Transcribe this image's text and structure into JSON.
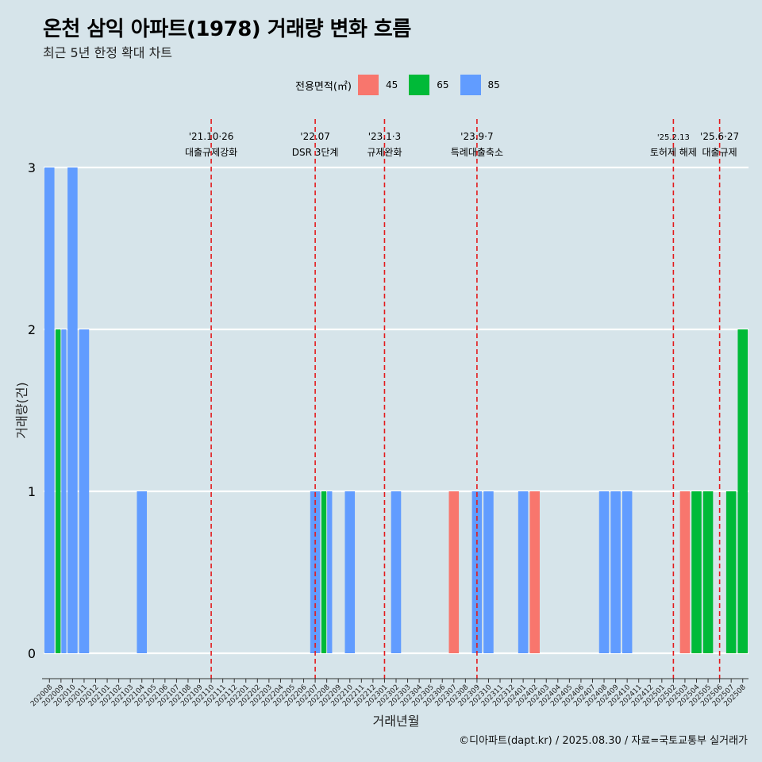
{
  "title": "온천 삼익 아파트(1978) 거래량 변화 흐름",
  "subtitle": "최근 5년 한정 확대 차트",
  "caption": "©디아파트(dapt.kr) / 2025.08.30 / 자료=국토교통부 실거래가",
  "legend": {
    "title": "전용면적(㎡)",
    "items": [
      {
        "label": "45",
        "color": "#f8766d"
      },
      {
        "label": "65",
        "color": "#00ba38"
      },
      {
        "label": "85",
        "color": "#619cff"
      }
    ]
  },
  "chart_data": {
    "type": "bar",
    "xlabel": "거래년월",
    "ylabel": "거래량(건)",
    "ylim": [
      0,
      3
    ],
    "yticks": [
      "0",
      "1",
      "2",
      "3"
    ],
    "grid": true,
    "legend_position": "top",
    "categories": [
      "202008",
      "202009",
      "202010",
      "202011",
      "202012",
      "202101",
      "202102",
      "202103",
      "202104",
      "202105",
      "202106",
      "202107",
      "202108",
      "202109",
      "202110",
      "202111",
      "202112",
      "202201",
      "202202",
      "202203",
      "202204",
      "202205",
      "202206",
      "202207",
      "202208",
      "202209",
      "202210",
      "202211",
      "202212",
      "202301",
      "202302",
      "202303",
      "202304",
      "202305",
      "202306",
      "202307",
      "202308",
      "202309",
      "202310",
      "202311",
      "202312",
      "202401",
      "202402",
      "202403",
      "202404",
      "202405",
      "202406",
      "202407",
      "202408",
      "202409",
      "202410",
      "202411",
      "202412",
      "202501",
      "202502",
      "202503",
      "202504",
      "202505",
      "202506",
      "202507",
      "202508"
    ],
    "series": [
      {
        "name": "45",
        "color": "#f8766d",
        "values": [
          0,
          0,
          0,
          0,
          0,
          0,
          0,
          0,
          0,
          0,
          0,
          0,
          0,
          0,
          0,
          0,
          0,
          0,
          0,
          0,
          0,
          0,
          0,
          0,
          0,
          0,
          0,
          0,
          0,
          0,
          0,
          0,
          0,
          0,
          0,
          1,
          0,
          0,
          0,
          0,
          0,
          0,
          1,
          0,
          0,
          0,
          0,
          0,
          0,
          0,
          0,
          0,
          0,
          0,
          0,
          1,
          0,
          0,
          0,
          0,
          0
        ]
      },
      {
        "name": "65",
        "color": "#00ba38",
        "values": [
          0,
          2,
          0,
          0,
          0,
          0,
          0,
          0,
          0,
          0,
          0,
          0,
          0,
          0,
          0,
          0,
          0,
          0,
          0,
          0,
          0,
          0,
          0,
          0,
          1,
          0,
          0,
          0,
          0,
          0,
          0,
          0,
          0,
          0,
          0,
          0,
          0,
          0,
          0,
          0,
          0,
          0,
          0,
          0,
          0,
          0,
          0,
          0,
          0,
          0,
          0,
          0,
          0,
          0,
          0,
          0,
          1,
          1,
          0,
          1,
          2
        ]
      },
      {
        "name": "85",
        "color": "#619cff",
        "values": [
          3,
          2,
          3,
          2,
          0,
          0,
          0,
          0,
          1,
          0,
          0,
          0,
          0,
          0,
          0,
          0,
          0,
          0,
          0,
          0,
          0,
          0,
          0,
          1,
          1,
          0,
          1,
          0,
          0,
          0,
          1,
          0,
          0,
          0,
          0,
          0,
          0,
          1,
          1,
          0,
          0,
          1,
          0,
          0,
          0,
          0,
          0,
          0,
          1,
          1,
          1,
          0,
          0,
          0,
          0,
          0,
          0,
          0,
          0,
          0,
          0
        ]
      }
    ],
    "events": [
      {
        "date": "'21.10·26",
        "label": "대출규제강화",
        "month": "202110"
      },
      {
        "date": "'22.07",
        "label": "DSR 3단계",
        "month": "202207"
      },
      {
        "date": "'23.1·3",
        "label": "규제완화",
        "month": "202301"
      },
      {
        "date": "'23.9·7",
        "label": "특례대출축소",
        "month": "202309"
      },
      {
        "date": "'25.2.13",
        "label": "토허제 해제",
        "month": "202502"
      },
      {
        "date": "'25.6·27",
        "label": "대출규제",
        "month": "202506"
      }
    ]
  }
}
